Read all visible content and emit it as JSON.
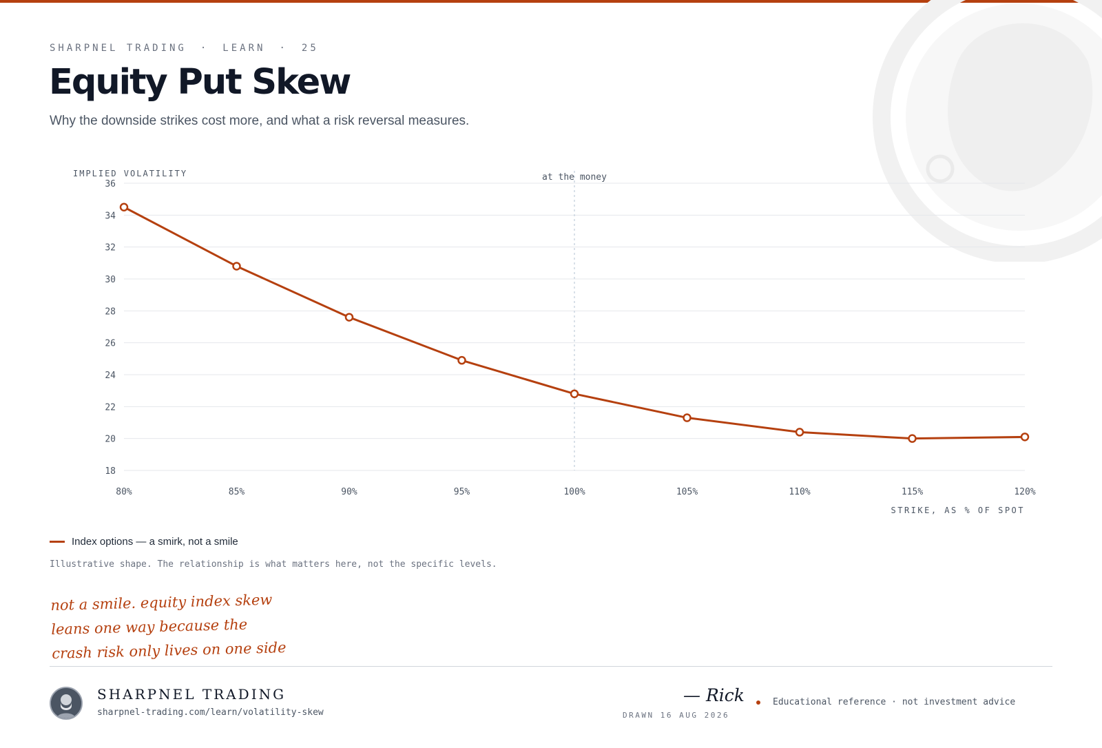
{
  "header": {
    "brand": "SHARPNEL TRADING",
    "section": "LEARN",
    "issue": "25",
    "separator": "·",
    "title": "Equity Put Skew",
    "subtitle": "Why the downside strikes cost more, and what a risk reversal measures."
  },
  "chart_data": {
    "type": "line",
    "ylabel": "IMPLIED VOLATILITY",
    "xlabel": "STRIKE, AS % OF SPOT",
    "categories": [
      "80%",
      "85%",
      "90%",
      "95%",
      "100%",
      "105%",
      "110%",
      "115%",
      "120%"
    ],
    "x": [
      80,
      85,
      90,
      95,
      100,
      105,
      110,
      115,
      120
    ],
    "xlim": [
      80,
      120
    ],
    "ylim": [
      18,
      36
    ],
    "yticks": [
      18,
      20,
      22,
      24,
      26,
      28,
      30,
      32,
      34,
      36
    ],
    "grid": true,
    "series": [
      {
        "name": "Index options — a smirk, not a smile",
        "values": [
          34.5,
          30.8,
          27.6,
          24.9,
          22.8,
          21.3,
          20.4,
          20.0,
          20.1
        ],
        "color": "#b5400f"
      }
    ],
    "annotations": [
      {
        "label": "at the money",
        "x": 100
      }
    ]
  },
  "legend": {
    "label": "Index options — a smirk, not a smile"
  },
  "note": "Illustrative shape. The relationship is what matters here, not the specific levels.",
  "handwritten": [
    "not a smile. equity index skew",
    "leans one way because the",
    "crash risk only lives on one side"
  ],
  "footer": {
    "brand": "SHARPNEL TRADING",
    "url": "sharpnel-trading.com/learn/volatility-skew",
    "signature": "— Rick",
    "drawn": "DRAWN 16 AUG 2026",
    "disclaimer": "Educational reference · not investment advice"
  },
  "colors": {
    "accent": "#b5400f",
    "text": "#111827",
    "muted": "#6b7280",
    "grid": "#e5e7eb"
  }
}
